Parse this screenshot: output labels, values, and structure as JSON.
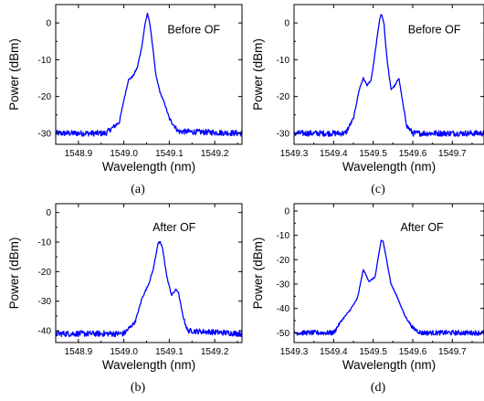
{
  "colors": {
    "trace": "#0000ff",
    "axis": "#000000",
    "background": "#ffffff"
  },
  "chart_data": [
    {
      "type": "line",
      "panel_label": "(a)",
      "annotation": "Before OF",
      "xlabel": "Wavelength (nm)",
      "ylabel": "Power (dBm)",
      "xlim": [
        1548.85,
        1549.26
      ],
      "ylim": [
        -33,
        5
      ],
      "xticks": [
        1548.9,
        1549.0,
        1549.1,
        1549.2
      ],
      "xtick_labels": [
        "1548.9",
        "1549.0",
        "1549.1",
        "1549.2"
      ],
      "yticks": [
        -30,
        -20,
        -10,
        0
      ],
      "ytick_labels": [
        "-30",
        "-20",
        "-10",
        "0"
      ],
      "grid": false,
      "noise_floor": -30,
      "noise_amplitude": 0.8,
      "profile": [
        [
          1548.85,
          -30
        ],
        [
          1548.96,
          -30
        ],
        [
          1548.99,
          -27
        ],
        [
          1549.0,
          -21
        ],
        [
          1549.01,
          -15.5
        ],
        [
          1549.02,
          -14.5
        ],
        [
          1549.03,
          -12
        ],
        [
          1549.04,
          -6
        ],
        [
          1549.047,
          0
        ],
        [
          1549.052,
          2.5
        ],
        [
          1549.057,
          0
        ],
        [
          1549.065,
          -8
        ],
        [
          1549.07,
          -14
        ],
        [
          1549.08,
          -19
        ],
        [
          1549.09,
          -22
        ],
        [
          1549.1,
          -26
        ],
        [
          1549.12,
          -29.5
        ],
        [
          1549.26,
          -30
        ]
      ]
    },
    {
      "type": "line",
      "panel_label": "(c)",
      "annotation": "Before OF",
      "xlabel": "Wavelength (nm)",
      "ylabel": "Power (dBm)",
      "xlim": [
        1549.3,
        1549.78
      ],
      "ylim": [
        -33,
        5
      ],
      "xticks": [
        1549.3,
        1549.4,
        1549.5,
        1549.6,
        1549.7
      ],
      "xtick_labels": [
        "1549.3",
        "1549.4",
        "1549.5",
        "1549.6",
        "1549.7"
      ],
      "yticks": [
        -30,
        -20,
        -10,
        0
      ],
      "ytick_labels": [
        "-30",
        "-20",
        "-10",
        "0"
      ],
      "grid": false,
      "noise_floor": -30,
      "noise_amplitude": 0.8,
      "profile": [
        [
          1549.3,
          -30
        ],
        [
          1549.43,
          -30
        ],
        [
          1549.45,
          -26
        ],
        [
          1549.465,
          -18
        ],
        [
          1549.475,
          -15
        ],
        [
          1549.485,
          -17
        ],
        [
          1549.495,
          -15.5
        ],
        [
          1549.505,
          -8
        ],
        [
          1549.515,
          0
        ],
        [
          1549.52,
          2.5
        ],
        [
          1549.527,
          0
        ],
        [
          1549.535,
          -10
        ],
        [
          1549.545,
          -18
        ],
        [
          1549.555,
          -17
        ],
        [
          1549.565,
          -15
        ],
        [
          1549.575,
          -22
        ],
        [
          1549.585,
          -28
        ],
        [
          1549.6,
          -30
        ],
        [
          1549.78,
          -30
        ]
      ]
    },
    {
      "type": "line",
      "panel_label": "(b)",
      "annotation": "After OF",
      "xlabel": "Wavelength (nm)",
      "ylabel": "Power (dBm)",
      "xlim": [
        1548.85,
        1549.26
      ],
      "ylim": [
        -44,
        3
      ],
      "xticks": [
        1548.9,
        1549.0,
        1549.1,
        1549.2
      ],
      "xtick_labels": [
        "1548.9",
        "1549.0",
        "1549.1",
        "1549.2"
      ],
      "yticks": [
        -40,
        -30,
        -20,
        -10,
        0
      ],
      "ytick_labels": [
        "-40",
        "-30",
        "-20",
        "-10",
        "0"
      ],
      "grid": false,
      "noise_floor": -41,
      "noise_amplitude": 1.0,
      "profile": [
        [
          1548.85,
          -41
        ],
        [
          1549.0,
          -41
        ],
        [
          1549.025,
          -37
        ],
        [
          1549.04,
          -29
        ],
        [
          1549.055,
          -24
        ],
        [
          1549.065,
          -19
        ],
        [
          1549.075,
          -10.5
        ],
        [
          1549.08,
          -10
        ],
        [
          1549.085,
          -12
        ],
        [
          1549.095,
          -22
        ],
        [
          1549.105,
          -28
        ],
        [
          1549.115,
          -26
        ],
        [
          1549.12,
          -27
        ],
        [
          1549.13,
          -35
        ],
        [
          1549.14,
          -40
        ],
        [
          1549.26,
          -41
        ]
      ]
    },
    {
      "type": "line",
      "panel_label": "(d)",
      "annotation": "After OF",
      "xlabel": "Wavelength (nm)",
      "ylabel": "Power (dBm)",
      "xlim": [
        1549.3,
        1549.78
      ],
      "ylim": [
        -54,
        3
      ],
      "xticks": [
        1549.3,
        1549.4,
        1549.5,
        1549.6,
        1549.7
      ],
      "xtick_labels": [
        "1549.3",
        "1549.4",
        "1549.5",
        "1549.6",
        "1549.7"
      ],
      "yticks": [
        -50,
        -40,
        -30,
        -20,
        -10,
        0
      ],
      "ytick_labels": [
        "-50",
        "-40",
        "-30",
        "-20",
        "-10",
        "0"
      ],
      "grid": false,
      "noise_floor": -50,
      "noise_amplitude": 1.0,
      "profile": [
        [
          1549.3,
          -50
        ],
        [
          1549.4,
          -50
        ],
        [
          1549.42,
          -45
        ],
        [
          1549.44,
          -41
        ],
        [
          1549.46,
          -36
        ],
        [
          1549.475,
          -24
        ],
        [
          1549.49,
          -29
        ],
        [
          1549.505,
          -27
        ],
        [
          1549.51,
          -22
        ],
        [
          1549.52,
          -12
        ],
        [
          1549.525,
          -12.5
        ],
        [
          1549.535,
          -21
        ],
        [
          1549.545,
          -30
        ],
        [
          1549.56,
          -35
        ],
        [
          1549.58,
          -43
        ],
        [
          1549.6,
          -48
        ],
        [
          1549.62,
          -50
        ],
        [
          1549.78,
          -50
        ]
      ]
    }
  ]
}
